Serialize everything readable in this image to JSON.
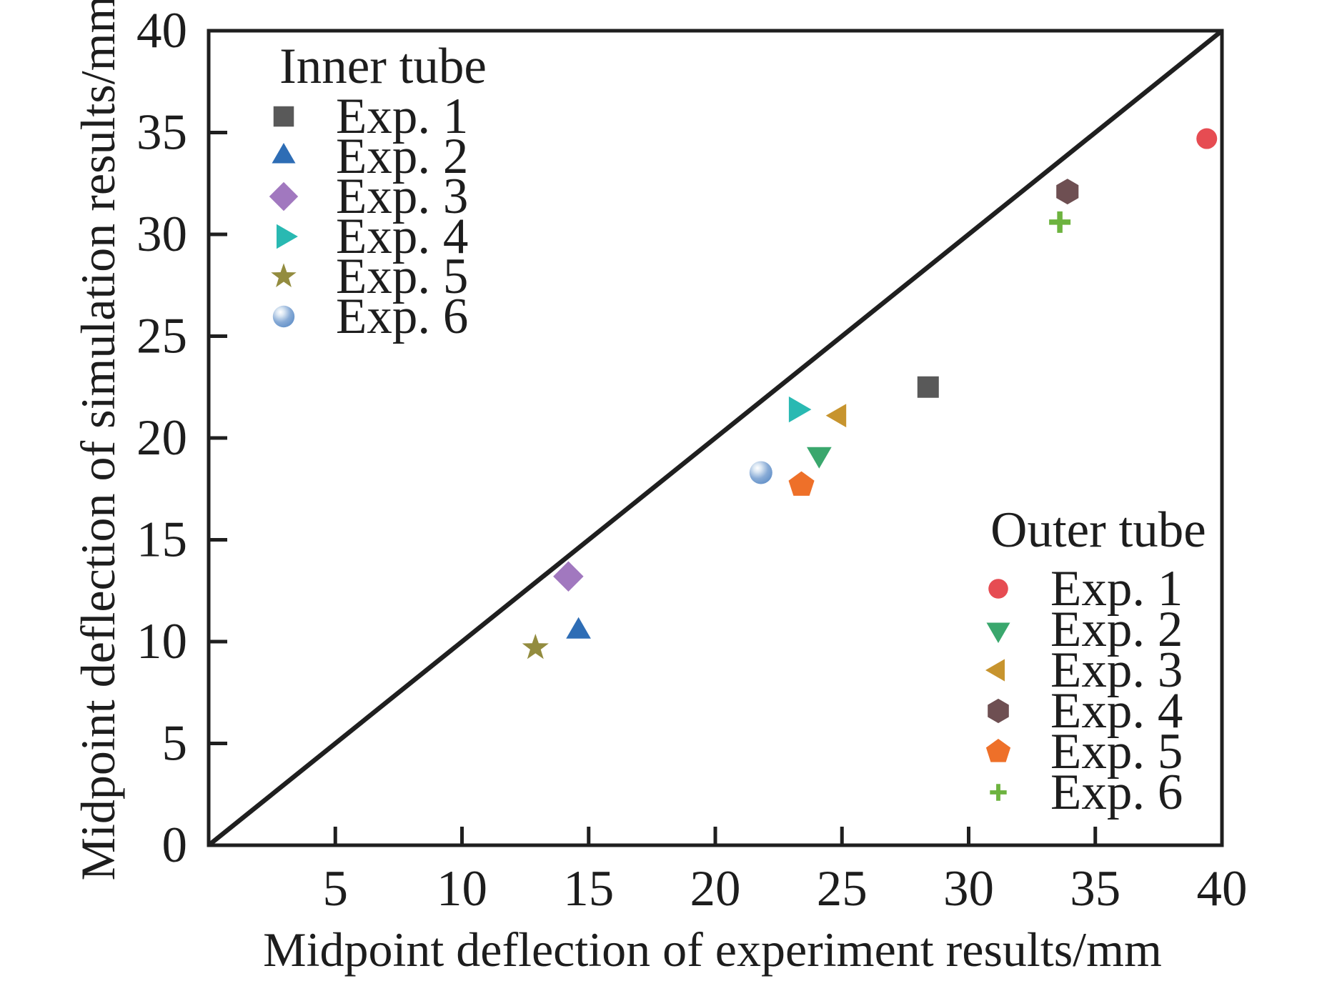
{
  "figure": {
    "background": "#ffffff",
    "axis_color": "#1f1f1f",
    "text_color": "#1d1d1d"
  },
  "chart_data": {
    "type": "scatter",
    "title": "",
    "xlabel": "Midpoint deflection of experiment results/mm",
    "ylabel": "Midpoint deflection of simulation results/mm",
    "xlim": [
      0,
      40
    ],
    "ylim": [
      0,
      40
    ],
    "xticks": [
      0,
      5,
      10,
      15,
      20,
      25,
      30,
      35,
      40
    ],
    "yticks": [
      0,
      5,
      10,
      15,
      20,
      25,
      30,
      35,
      40
    ],
    "grid": false,
    "reference_line": {
      "name": "identity-line",
      "from": [
        0,
        0
      ],
      "to": [
        40,
        40
      ],
      "color": "#1f1f1f"
    },
    "legends": [
      {
        "title": "Inner tube",
        "position": "top-left",
        "entries": [
          {
            "label": "Exp. 1",
            "marker": "square",
            "color": "#595959"
          },
          {
            "label": "Exp. 2",
            "marker": "triangle-up",
            "color": "#2e6db5"
          },
          {
            "label": "Exp. 3",
            "marker": "diamond",
            "color": "#a178bf"
          },
          {
            "label": "Exp. 4",
            "marker": "triangle-right",
            "color": "#29b9b2"
          },
          {
            "label": "Exp. 5",
            "marker": "star",
            "color": "#938c3f"
          },
          {
            "label": "Exp. 6",
            "marker": "sphere",
            "color": "#6193cf"
          }
        ]
      },
      {
        "title": "Outer tube",
        "position": "bottom-right",
        "entries": [
          {
            "label": "Exp. 1",
            "marker": "circle",
            "color": "#e64c52"
          },
          {
            "label": "Exp. 2",
            "marker": "triangle-down",
            "color": "#3aa76d"
          },
          {
            "label": "Exp. 3",
            "marker": "triangle-left",
            "color": "#c7942e"
          },
          {
            "label": "Exp. 4",
            "marker": "hexagon",
            "color": "#6e4f52"
          },
          {
            "label": "Exp. 5",
            "marker": "pentagon",
            "color": "#ee7029"
          },
          {
            "label": "Exp. 6",
            "marker": "plus",
            "color": "#6db33f"
          }
        ]
      }
    ],
    "series": [
      {
        "group": "Inner tube",
        "name": "Exp. 1",
        "marker": "square",
        "color": "#595959",
        "x": 28.4,
        "y": 22.5
      },
      {
        "group": "Inner tube",
        "name": "Exp. 2",
        "marker": "triangle-up",
        "color": "#2e6db5",
        "x": 14.6,
        "y": 10.5
      },
      {
        "group": "Inner tube",
        "name": "Exp. 3",
        "marker": "diamond",
        "color": "#a178bf",
        "x": 14.2,
        "y": 13.2
      },
      {
        "group": "Inner tube",
        "name": "Exp. 4",
        "marker": "triangle-right",
        "color": "#29b9b2",
        "x": 23.2,
        "y": 21.4
      },
      {
        "group": "Inner tube",
        "name": "Exp. 5",
        "marker": "star",
        "color": "#938c3f",
        "x": 12.9,
        "y": 9.7
      },
      {
        "group": "Inner tube",
        "name": "Exp. 6",
        "marker": "sphere",
        "color": "#6193cf",
        "x": 21.8,
        "y": 18.3
      },
      {
        "group": "Outer tube",
        "name": "Exp. 1",
        "marker": "circle",
        "color": "#e64c52",
        "x": 39.4,
        "y": 34.7
      },
      {
        "group": "Outer tube",
        "name": "Exp. 2",
        "marker": "triangle-down",
        "color": "#3aa76d",
        "x": 24.1,
        "y": 19.2
      },
      {
        "group": "Outer tube",
        "name": "Exp. 3",
        "marker": "triangle-left",
        "color": "#c7942e",
        "x": 24.9,
        "y": 21.1
      },
      {
        "group": "Outer tube",
        "name": "Exp. 4",
        "marker": "hexagon",
        "color": "#6e4f52",
        "x": 33.9,
        "y": 32.1
      },
      {
        "group": "Outer tube",
        "name": "Exp. 5",
        "marker": "pentagon",
        "color": "#ee7029",
        "x": 23.4,
        "y": 17.7
      },
      {
        "group": "Outer tube",
        "name": "Exp. 6",
        "marker": "plus",
        "color": "#6db33f",
        "x": 33.6,
        "y": 30.6
      }
    ]
  }
}
